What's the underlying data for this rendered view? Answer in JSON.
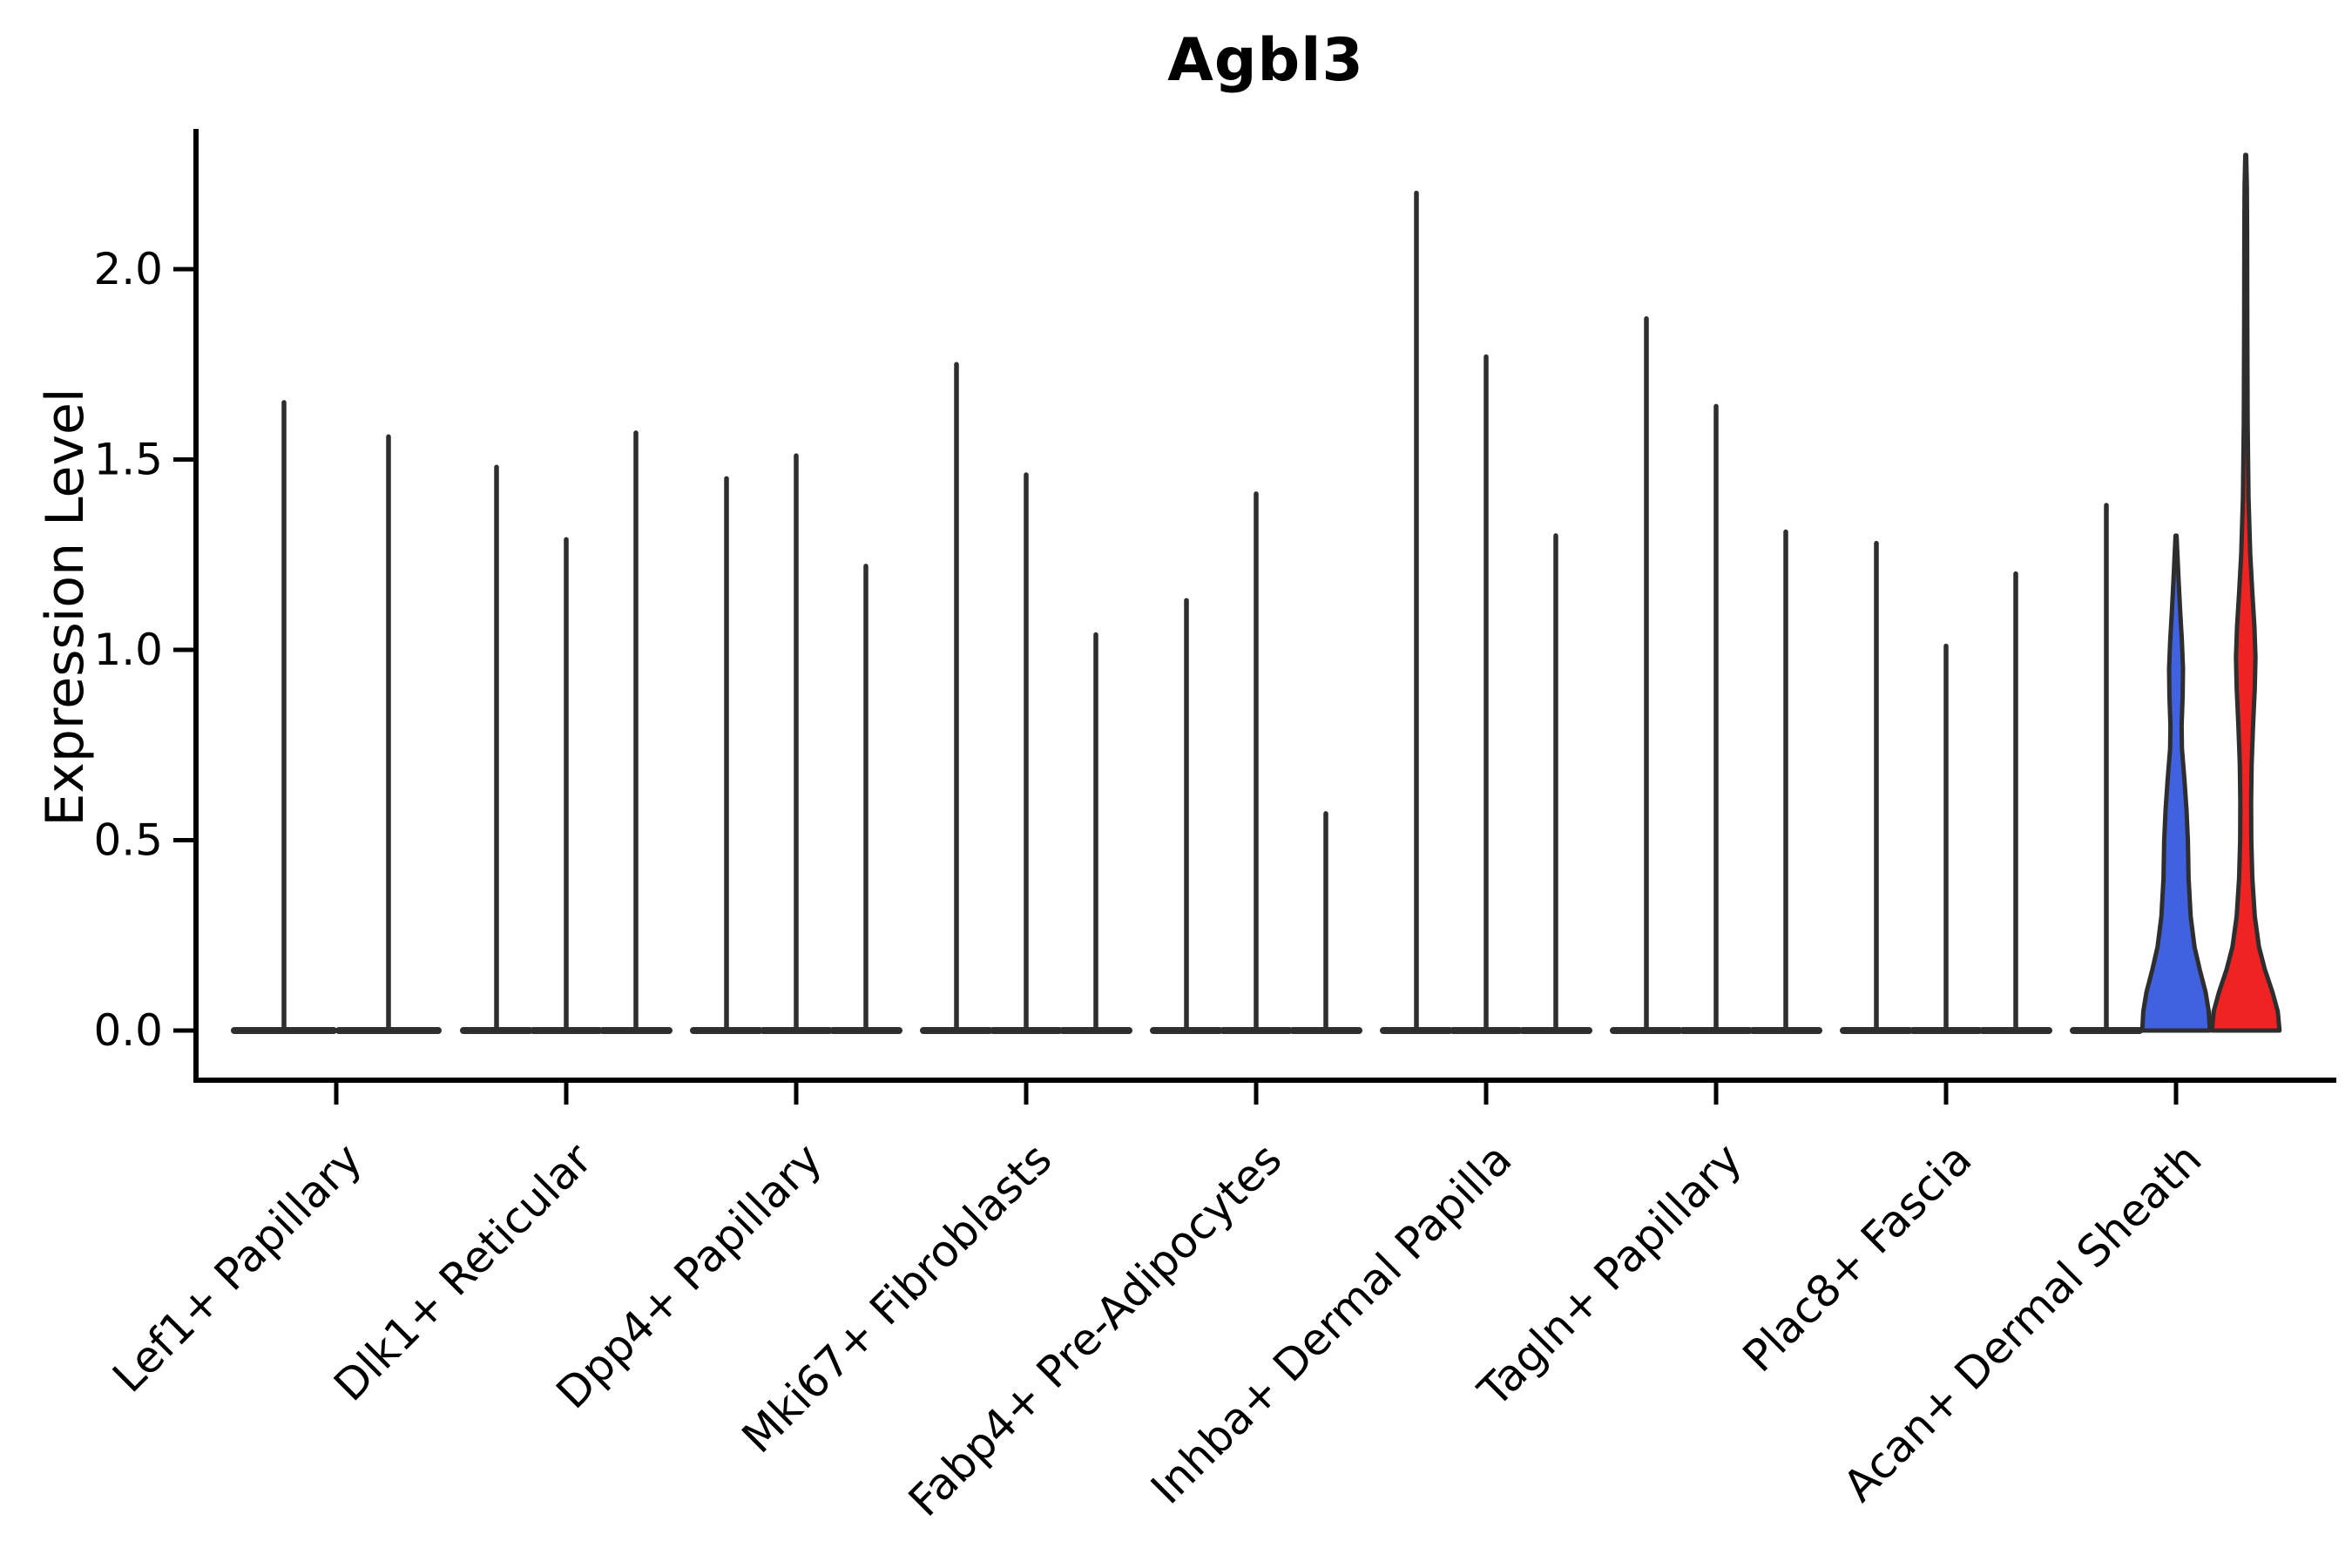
{
  "figure": {
    "title": "Agbl3",
    "ylabel": "Expression Level"
  },
  "chart_data": {
    "type": "violin",
    "title": "Agbl3",
    "xlabel": "",
    "ylabel": "Expression Level",
    "ylim": [
      -0.13,
      2.37
    ],
    "grid": false,
    "legend": "none",
    "yticks": [
      {
        "value": 0.0,
        "label": "0.0"
      },
      {
        "value": 0.5,
        "label": "0.5"
      },
      {
        "value": 1.0,
        "label": "1.0"
      },
      {
        "value": 1.5,
        "label": "1.5"
      },
      {
        "value": 2.0,
        "label": "2.0"
      }
    ],
    "categories": [
      "Lef1+ Papillary",
      "Dlk1+ Reticular",
      "Dpp4+ Papillary",
      "Mki67+ Fibroblasts",
      "Fabp4+ Pre-Adipocytes",
      "Inhba+ Dermal Papilla",
      "Tagln+ Papillary",
      "Plac8+ Fascia",
      "Acan+ Dermal Sheath"
    ],
    "groups": [
      {
        "category": "Lef1+ Papillary",
        "violins": [
          {
            "max": 1.65,
            "style": "spike"
          },
          {
            "max": 1.56,
            "style": "spike"
          }
        ]
      },
      {
        "category": "Dlk1+ Reticular",
        "violins": [
          {
            "max": 1.48,
            "style": "spike"
          },
          {
            "max": 1.29,
            "style": "spike"
          },
          {
            "max": 1.57,
            "style": "spike"
          }
        ]
      },
      {
        "category": "Dpp4+ Papillary",
        "violins": [
          {
            "max": 1.45,
            "style": "spike"
          },
          {
            "max": 1.51,
            "style": "spike"
          },
          {
            "max": 1.22,
            "style": "spike"
          }
        ]
      },
      {
        "category": "Mki67+ Fibroblasts",
        "violins": [
          {
            "max": 1.75,
            "style": "spike"
          },
          {
            "max": 1.46,
            "style": "spike"
          },
          {
            "max": 1.04,
            "style": "spike"
          }
        ]
      },
      {
        "category": "Fabp4+ Pre-Adipocytes",
        "violins": [
          {
            "max": 1.13,
            "style": "spike"
          },
          {
            "max": 1.41,
            "style": "spike"
          },
          {
            "max": 0.57,
            "style": "spike"
          }
        ]
      },
      {
        "category": "Inhba+ Dermal Papilla",
        "violins": [
          {
            "max": 2.2,
            "style": "spike"
          },
          {
            "max": 1.77,
            "style": "spike"
          },
          {
            "max": 1.3,
            "style": "spike"
          }
        ]
      },
      {
        "category": "Tagln+ Papillary",
        "violins": [
          {
            "max": 1.87,
            "style": "spike"
          },
          {
            "max": 1.64,
            "style": "spike"
          },
          {
            "max": 1.31,
            "style": "spike"
          }
        ]
      },
      {
        "category": "Plac8+ Fascia",
        "violins": [
          {
            "max": 1.28,
            "style": "spike"
          },
          {
            "max": 1.01,
            "style": "spike"
          },
          {
            "max": 1.2,
            "style": "spike"
          }
        ]
      },
      {
        "category": "Acan+ Dermal Sheath",
        "violins": [
          {
            "max": 1.38,
            "style": "spike"
          },
          {
            "max": 1.3,
            "style": "filled",
            "fill": "#4162E0",
            "profile": "blue"
          },
          {
            "max": 2.3,
            "style": "filled",
            "fill": "#F02323",
            "profile": "red"
          }
        ]
      }
    ],
    "profiles": {
      "blue": [
        [
          0,
          0.97
        ],
        [
          0.05,
          0.94
        ],
        [
          0.1,
          0.85
        ],
        [
          0.16,
          0.68
        ],
        [
          0.22,
          0.53
        ],
        [
          0.3,
          0.42
        ],
        [
          0.4,
          0.36
        ],
        [
          0.5,
          0.34
        ],
        [
          0.58,
          0.3
        ],
        [
          0.66,
          0.24
        ],
        [
          0.74,
          0.17
        ],
        [
          0.8,
          0.16
        ],
        [
          0.88,
          0.19
        ],
        [
          0.95,
          0.2
        ],
        [
          1.02,
          0.17
        ],
        [
          1.1,
          0.12
        ],
        [
          1.18,
          0.075
        ],
        [
          1.25,
          0.04
        ],
        [
          1.3,
          0.015
        ]
      ],
      "red": [
        [
          0,
          0.97
        ],
        [
          0.05,
          0.92
        ],
        [
          0.1,
          0.77
        ],
        [
          0.16,
          0.55
        ],
        [
          0.22,
          0.38
        ],
        [
          0.3,
          0.26
        ],
        [
          0.4,
          0.19
        ],
        [
          0.5,
          0.16
        ],
        [
          0.6,
          0.155
        ],
        [
          0.7,
          0.17
        ],
        [
          0.8,
          0.21
        ],
        [
          0.9,
          0.26
        ],
        [
          0.98,
          0.28
        ],
        [
          1.06,
          0.25
        ],
        [
          1.15,
          0.19
        ],
        [
          1.25,
          0.13
        ],
        [
          1.4,
          0.08
        ],
        [
          1.6,
          0.055
        ],
        [
          1.85,
          0.045
        ],
        [
          2.1,
          0.04
        ],
        [
          2.22,
          0.032
        ],
        [
          2.3,
          0.012
        ]
      ]
    },
    "colors": {
      "axis": "#000000",
      "violin_edge": "#2e2e2e",
      "blue_fill": "#4162E0",
      "red_fill": "#F02323",
      "background": "#ffffff"
    }
  }
}
